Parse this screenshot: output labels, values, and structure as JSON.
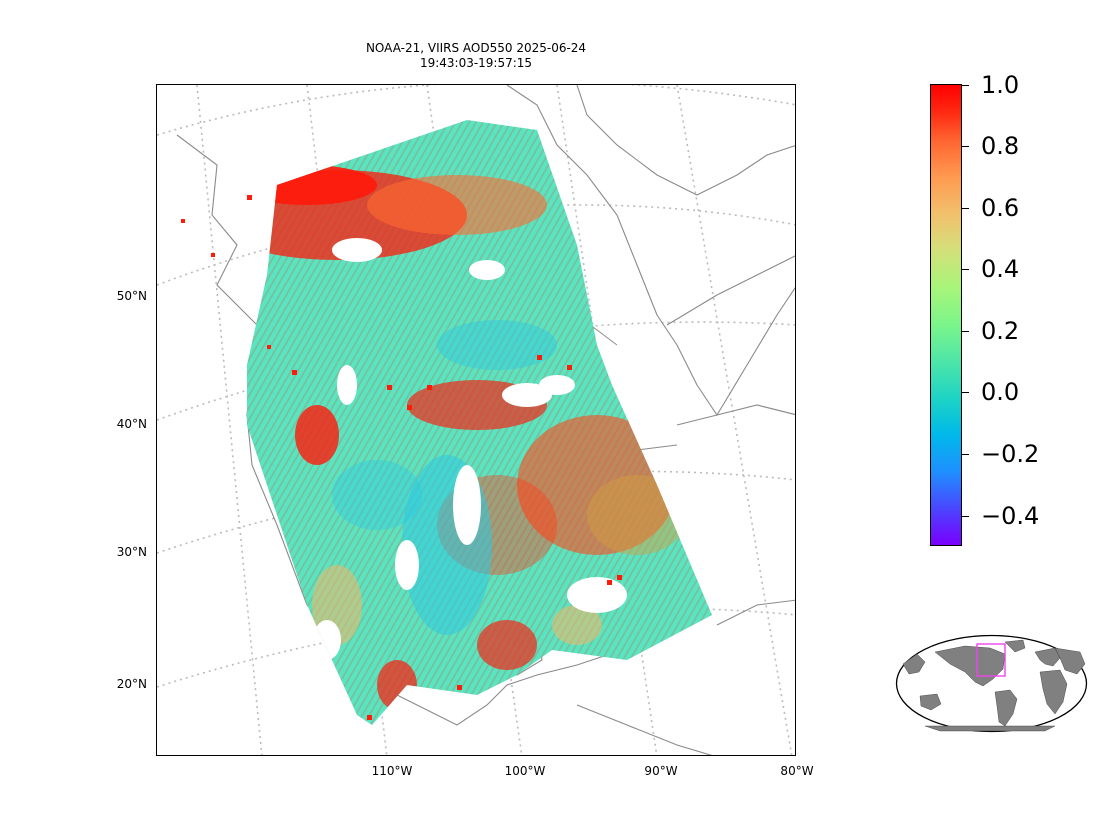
{
  "title": {
    "line1": "NOAA-21, VIIRS AOD550 2025-06-24",
    "line2": "19:43:03-19:57:15"
  },
  "map": {
    "lat_labels": [
      "50°N",
      "40°N",
      "30°N",
      "20°N"
    ],
    "lon_labels": [
      "110°W",
      "100°W",
      "90°W",
      "80°W"
    ],
    "colors": {
      "coastline": "#8a8a8a",
      "gridline": "#bbbbbb",
      "swath_base": "#58e6c2",
      "high_aod": "#ff1a0a",
      "mid_aod": "#f2b866",
      "low_aod": "#2fc8e0"
    }
  },
  "colorbar": {
    "colormap": "rainbow",
    "range": [
      -0.5,
      1.0
    ],
    "tick_labels": [
      "1.0",
      "0.8",
      "0.6",
      "0.4",
      "0.2",
      "0.0",
      "−0.2",
      "−0.4"
    ]
  },
  "inset": {
    "name": "global-locator",
    "land_color": "#808080",
    "box_color": "#ee44ee"
  }
}
